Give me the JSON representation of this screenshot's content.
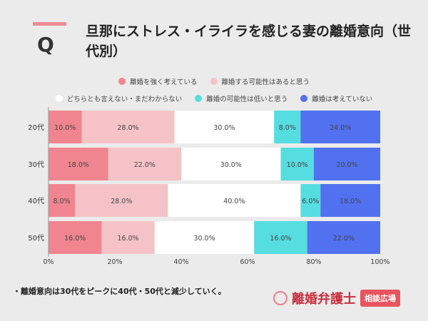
{
  "header": {
    "q_label": "Q",
    "title": "旦那にストレス・イライラを感じる妻の離婚意向（世代別）"
  },
  "chart_data": {
    "type": "bar",
    "orientation": "horizontal",
    "stacked": true,
    "categories": [
      "20代",
      "30代",
      "40代",
      "50代"
    ],
    "series": [
      {
        "name": "離婚を強く考えている",
        "color": "#f0858f",
        "values": [
          10,
          18,
          8,
          16
        ]
      },
      {
        "name": "離婚する可能性はあると思う",
        "color": "#f5c3c7",
        "values": [
          28,
          22,
          28,
          16
        ]
      },
      {
        "name": "どちらとも言えない・まだわからない",
        "color": "#ffffff",
        "values": [
          30,
          30,
          40,
          30
        ]
      },
      {
        "name": "離婚の可能性は低いと思う",
        "color": "#56dde0",
        "values": [
          8,
          10,
          6,
          16
        ]
      },
      {
        "name": "離婚は考えていない",
        "color": "#5271f0",
        "values": [
          24,
          20,
          18,
          22
        ]
      }
    ],
    "xlim": [
      0,
      100
    ],
    "x_ticks": [
      "0%",
      "20%",
      "40%",
      "60%",
      "80%",
      "100%"
    ],
    "value_suffix": "%",
    "legend_position": "top",
    "grid": false
  },
  "footer": {
    "note": "・離婚意向は30代をピークに40代・50代と減少していく。",
    "logo_main": "離婚弁護士",
    "logo_badge": "相談広場"
  }
}
